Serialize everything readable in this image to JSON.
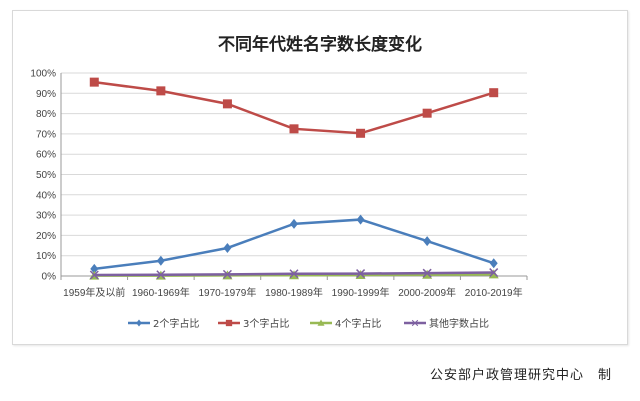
{
  "chart_data": {
    "type": "line",
    "title": "不同年代姓名字数长度变化",
    "categories": [
      "1959年及以前",
      "1960-1969年",
      "1970-1979年",
      "1980-1989年",
      "1990-1999年",
      "2000-2009年",
      "2010-2019年"
    ],
    "ylim": [
      0,
      100
    ],
    "yticks": [
      "0%",
      "10%",
      "20%",
      "30%",
      "40%",
      "50%",
      "60%",
      "70%",
      "80%",
      "90%",
      "100%"
    ],
    "grid": true,
    "legend_position": "bottom",
    "series": [
      {
        "name": "2个字占比",
        "color": "#4a7ebb",
        "marker": "diamond",
        "values": [
          3.5,
          7.5,
          13.8,
          25.7,
          27.8,
          17.2,
          6.3
        ]
      },
      {
        "name": "3个字占比",
        "color": "#be4b48",
        "marker": "square",
        "values": [
          95.5,
          91.2,
          84.8,
          72.5,
          70.3,
          80.2,
          90.3
        ]
      },
      {
        "name": "4个字占比",
        "color": "#98b954",
        "marker": "triangle",
        "values": [
          0.2,
          0.2,
          0.3,
          0.4,
          0.5,
          0.6,
          0.8
        ]
      },
      {
        "name": "其他字数占比",
        "color": "#7d60a0",
        "marker": "x",
        "values": [
          0.5,
          0.6,
          0.8,
          1.1,
          1.2,
          1.4,
          1.7
        ]
      }
    ]
  },
  "credit": "公安部户政管理研究中心　制"
}
